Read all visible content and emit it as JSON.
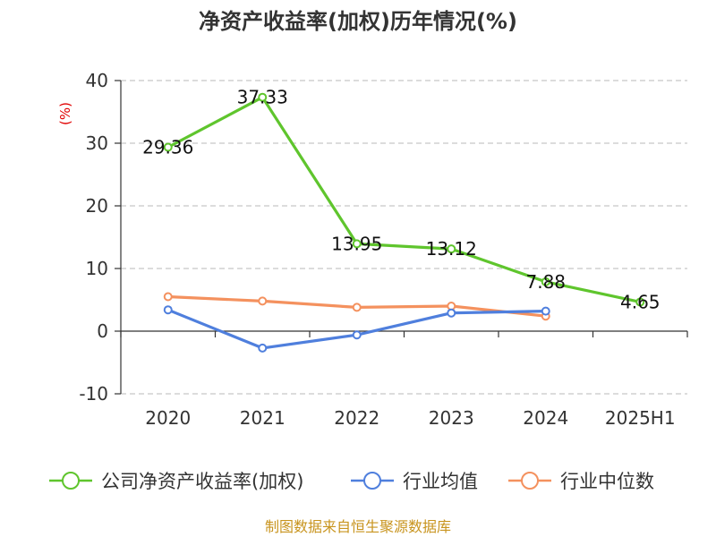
{
  "chart_data": {
    "type": "line",
    "title": "净资产收益率(加权)历年情况(%)",
    "ylabel": "(%)",
    "xlabel": "",
    "categories": [
      "2020",
      "2021",
      "2022",
      "2023",
      "2024",
      "2025H1"
    ],
    "ylim": [
      -10,
      40
    ],
    "yticks": [
      -10,
      0,
      10,
      20,
      30,
      40
    ],
    "grid": true,
    "legend_position": "bottom",
    "series": [
      {
        "name": "公司净资产收益率(加权)",
        "color": "#5fc52d",
        "values": [
          29.36,
          37.33,
          13.95,
          13.12,
          7.88,
          4.65
        ],
        "labels": [
          "29.36",
          "37.33",
          "13.95",
          "13.12",
          "7.88",
          "4.65"
        ]
      },
      {
        "name": "行业均值",
        "color": "#4f7fdd",
        "values": [
          3.4,
          -2.7,
          -0.6,
          2.9,
          3.2,
          null
        ]
      },
      {
        "name": "行业中位数",
        "color": "#f4915e",
        "values": [
          5.5,
          4.8,
          3.8,
          4.0,
          2.4,
          null
        ]
      }
    ]
  },
  "source_text": "制图数据来自恒生聚源数据库"
}
